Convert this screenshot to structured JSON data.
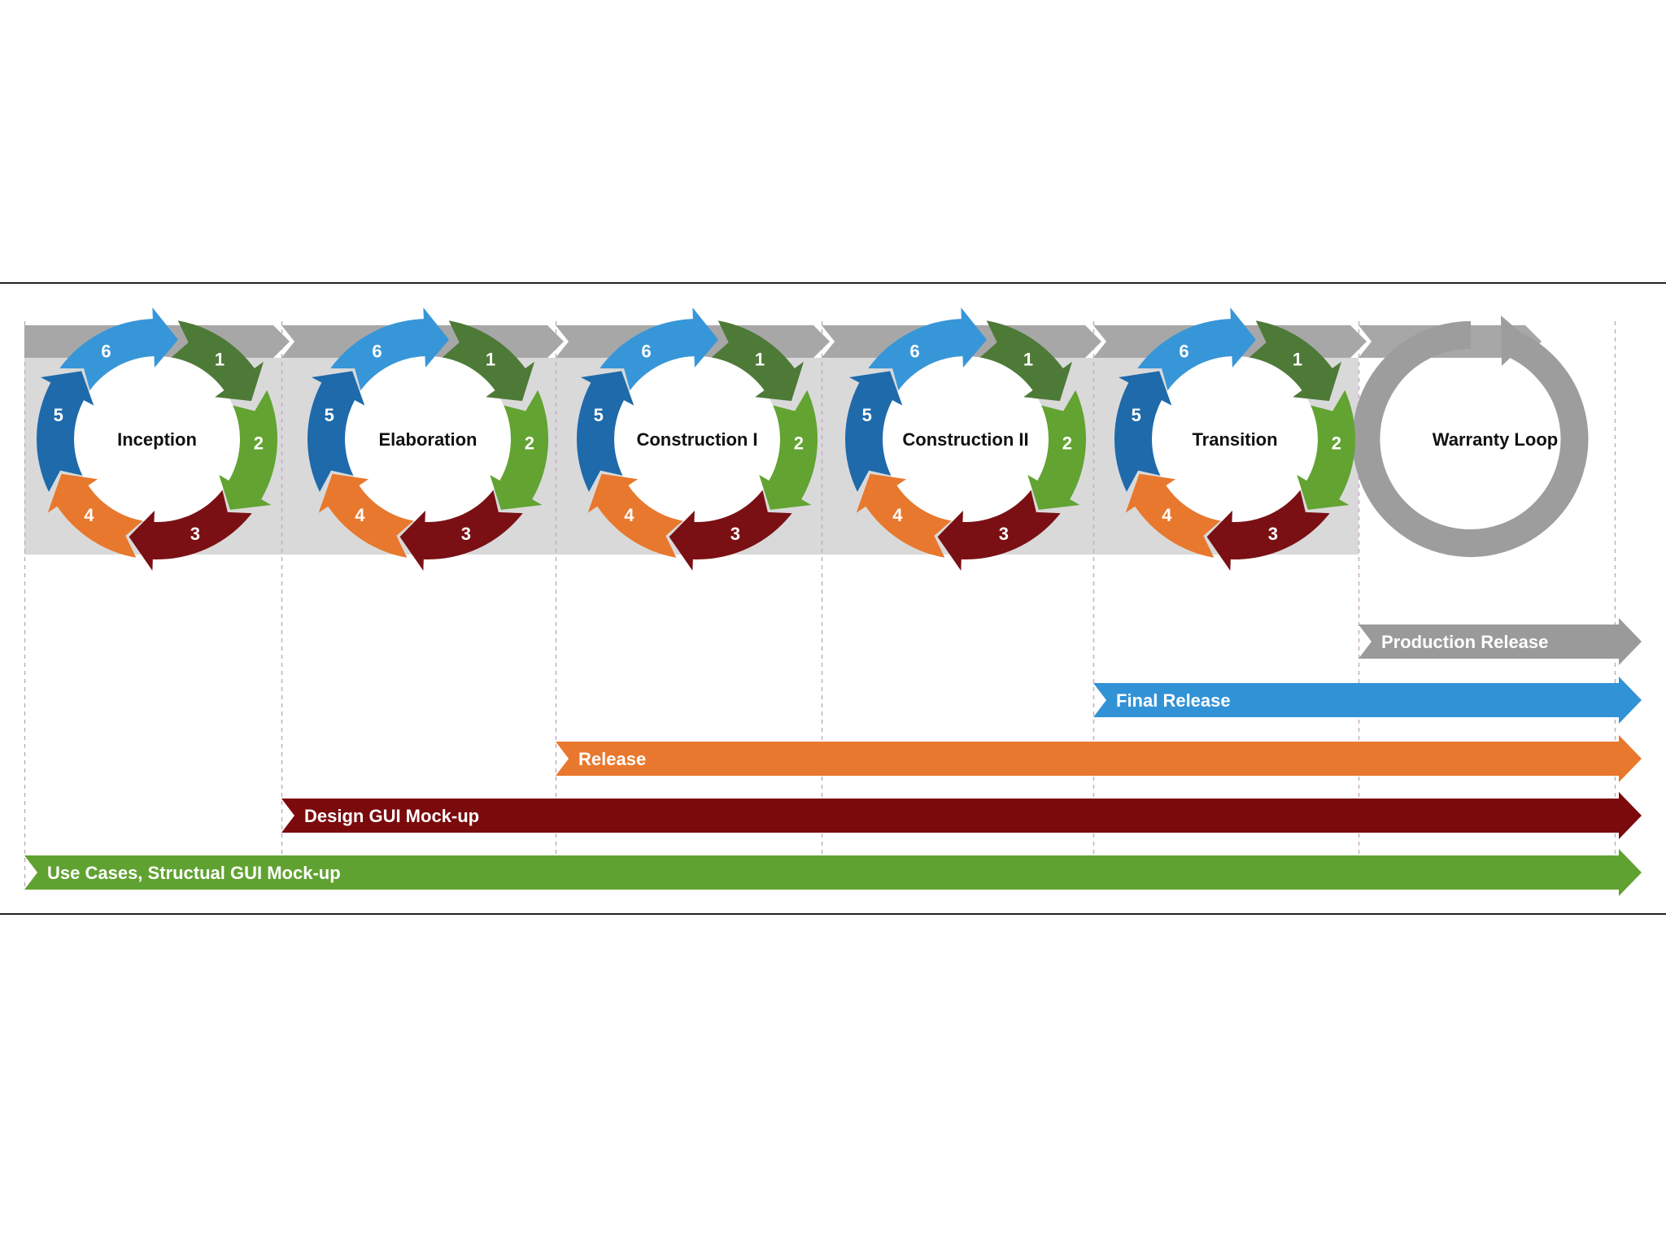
{
  "phases": [
    {
      "label": "Inception"
    },
    {
      "label": "Elaboration"
    },
    {
      "label": "Construction I"
    },
    {
      "label": "Construction II"
    },
    {
      "label": "Transition"
    }
  ],
  "warranty": {
    "label": "Warranty Loop"
  },
  "cycle_segments": [
    {
      "num": "1",
      "color": "#4e7a37"
    },
    {
      "num": "2",
      "color": "#62a331"
    },
    {
      "num": "3",
      "color": "#7a1014"
    },
    {
      "num": "4",
      "color": "#e8782d"
    },
    {
      "num": "5",
      "color": "#1e6aab"
    },
    {
      "num": "6",
      "color": "#3796d8"
    }
  ],
  "tracks": [
    {
      "label": "Production Release",
      "start_phase": 5,
      "color": "#9a9a9b"
    },
    {
      "label": "Final Release",
      "start_phase": 4,
      "color": "#3192d6"
    },
    {
      "label": "Release",
      "start_phase": 2,
      "color": "#e8782d"
    },
    {
      "label": "Design GUI Mock-up",
      "start_phase": 1,
      "color": "#7b0a0d"
    },
    {
      "label": "Use Cases, Structual GUI Mock-up",
      "start_phase": 0,
      "color": "#60a231"
    }
  ],
  "colors": {
    "band": "#d9d9da",
    "top_arrow": "#a7a7a8",
    "warranty_ring": "#9d9d9e",
    "divider": "#c9a9c6",
    "rule": "#222222"
  }
}
